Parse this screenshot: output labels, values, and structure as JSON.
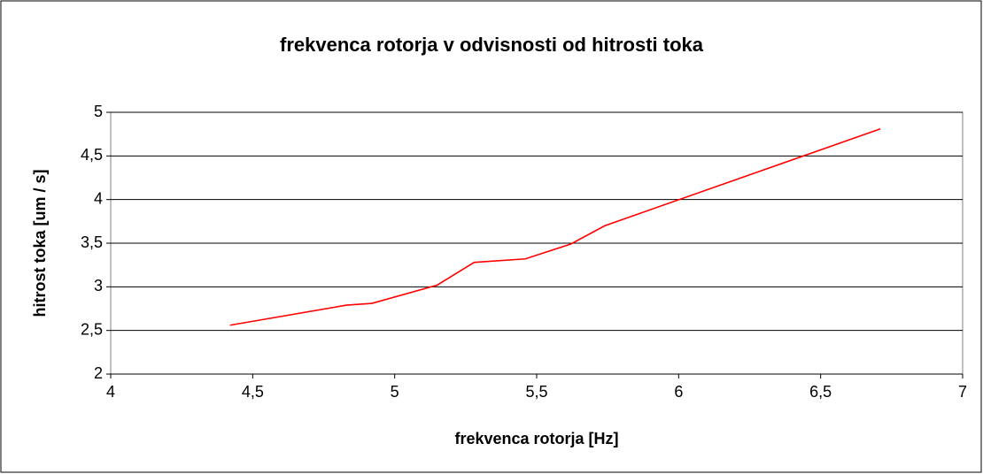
{
  "chart_data": {
    "type": "line",
    "title": "frekvenca rotorja v odvisnosti od hitrosti toka",
    "x_label": "frekvenca rotorja [Hz]",
    "y_label": "hitrost toka [um / s]",
    "x": [
      4.42,
      4.83,
      4.92,
      5.15,
      5.28,
      5.46,
      5.62,
      5.74,
      6.71
    ],
    "series": [
      {
        "name": "hitrost toka",
        "color": "#ff0000",
        "values": [
          2.56,
          2.79,
          2.81,
          3.02,
          3.28,
          3.32,
          3.49,
          3.7,
          4.81
        ]
      }
    ],
    "xlim": [
      4,
      7
    ],
    "xticks": [
      4,
      {
        "value": 4.5,
        "label": "4,5"
      },
      5,
      {
        "value": 5.5,
        "label": "5,5"
      },
      6,
      {
        "value": 6.5,
        "label": "6,5"
      },
      7
    ],
    "ylim": [
      2,
      5
    ],
    "yticks": [
      2,
      {
        "value": 2.5,
        "label": "2,5"
      },
      3,
      {
        "value": 3.5,
        "label": "3,5"
      },
      4,
      {
        "value": 4.5,
        "label": "4,5"
      },
      5
    ],
    "grid": true
  }
}
